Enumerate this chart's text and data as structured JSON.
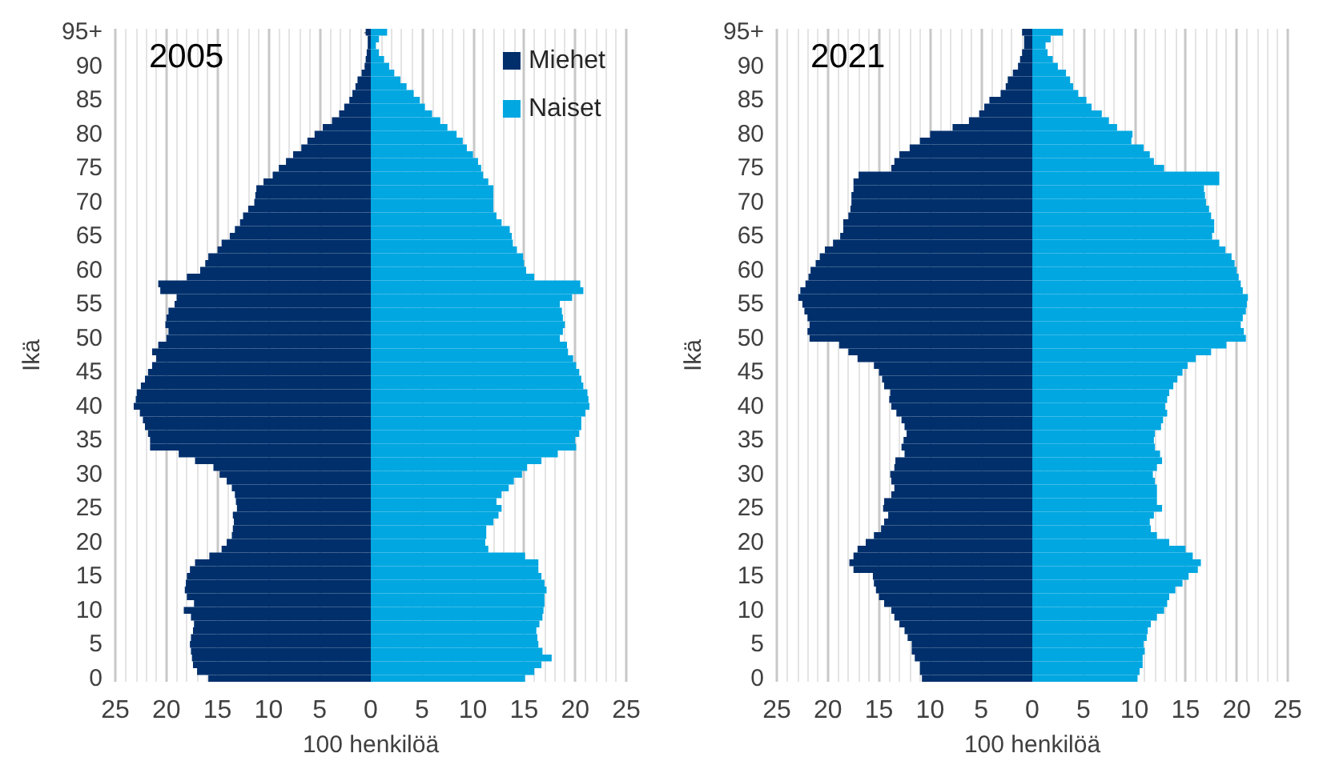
{
  "chart_data": [
    {
      "type": "bar",
      "orientation": "horizontal",
      "stacked": true,
      "title": "2005",
      "xlabel": "100 henkilöä",
      "ylabel": "Ikä",
      "legend": "top right",
      "grid": "x",
      "categories": [
        "95+",
        null,
        null,
        null,
        null,
        "90",
        null,
        null,
        null,
        null,
        "85",
        null,
        null,
        null,
        null,
        "80",
        null,
        null,
        null,
        null,
        "75",
        null,
        null,
        null,
        null,
        "70",
        null,
        null,
        null,
        null,
        "65",
        null,
        null,
        null,
        null,
        "60",
        null,
        null,
        null,
        null,
        "55",
        null,
        null,
        null,
        null,
        "50",
        null,
        null,
        null,
        null,
        "45",
        null,
        null,
        null,
        null,
        "40",
        null,
        null,
        null,
        null,
        "35",
        null,
        null,
        null,
        null,
        "30",
        null,
        null,
        null,
        null,
        "25",
        null,
        null,
        null,
        null,
        "20",
        null,
        null,
        null,
        null,
        "15",
        null,
        null,
        null,
        null,
        "10",
        null,
        null,
        null,
        null,
        "5",
        null,
        null,
        null,
        null,
        "0"
      ],
      "xlim": [
        -25,
        25
      ],
      "xticks": [
        {
          "value": -25,
          "label": "25"
        },
        {
          "value": -20,
          "label": "20"
        },
        {
          "value": -15,
          "label": "15"
        },
        {
          "value": -10,
          "label": "10"
        },
        {
          "value": -5,
          "label": "5"
        },
        0,
        5,
        10,
        15,
        20,
        25
      ],
      "series": [
        {
          "name": "Miehet",
          "color": "#002f6c",
          "values": [
            -0.5,
            -0.3,
            -0.3,
            -0.4,
            -0.5,
            -0.6,
            -0.9,
            -1.3,
            -1.5,
            -1.8,
            -2.1,
            -2.6,
            -3.1,
            -3.8,
            -4.7,
            -5.5,
            -6.2,
            -6.8,
            -7.6,
            -8.3,
            -9.0,
            -9.6,
            -10.5,
            -11.2,
            -11.3,
            -11.4,
            -12.0,
            -12.5,
            -12.8,
            -13.3,
            -13.8,
            -14.6,
            -15.0,
            -15.9,
            -16.2,
            -16.7,
            -18.0,
            -20.8,
            -20.6,
            -19.0,
            -19.2,
            -19.8,
            -20.0,
            -20.1,
            -19.8,
            -20.0,
            -20.8,
            -21.4,
            -21.0,
            -21.4,
            -21.8,
            -22.1,
            -22.5,
            -22.9,
            -23.0,
            -23.2,
            -22.6,
            -22.3,
            -22.1,
            -21.8,
            -21.6,
            -21.6,
            -18.8,
            -17.2,
            -15.4,
            -14.8,
            -14.1,
            -13.6,
            -13.3,
            -13.2,
            -13.1,
            -13.5,
            -13.4,
            -13.5,
            -13.6,
            -14.1,
            -14.6,
            -15.8,
            -17.2,
            -17.7,
            -18.0,
            -18.1,
            -18.2,
            -18.0,
            -17.3,
            -18.3,
            -17.6,
            -17.3,
            -17.4,
            -17.6,
            -17.7,
            -17.6,
            -17.5,
            -17.4,
            -17.0,
            -15.9
          ]
        },
        {
          "name": "Naiset",
          "color": "#00a7e1",
          "values": [
            1.6,
            0.8,
            0.5,
            0.8,
            1.3,
            1.8,
            2.3,
            2.9,
            3.5,
            4.2,
            4.8,
            5.3,
            6.0,
            6.8,
            7.5,
            8.4,
            9.0,
            9.4,
            10.0,
            10.5,
            10.8,
            11.0,
            11.5,
            12.0,
            12.0,
            12.0,
            12.0,
            12.3,
            12.8,
            13.6,
            13.8,
            13.9,
            14.3,
            14.9,
            15.0,
            15.2,
            16.0,
            20.5,
            20.8,
            19.7,
            18.5,
            18.7,
            18.8,
            19.0,
            18.8,
            18.5,
            19.2,
            19.3,
            19.8,
            20.1,
            20.4,
            20.6,
            20.8,
            21.2,
            21.3,
            21.4,
            21.0,
            20.6,
            20.6,
            20.4,
            20.0,
            20.1,
            18.3,
            16.7,
            15.3,
            14.8,
            14.0,
            13.5,
            12.8,
            12.3,
            12.8,
            12.5,
            12.0,
            11.3,
            11.3,
            11.2,
            11.5,
            15.1,
            16.4,
            16.4,
            16.7,
            17.0,
            17.2,
            17.0,
            17.0,
            16.9,
            16.8,
            16.5,
            16.2,
            16.3,
            16.4,
            16.8,
            17.7,
            16.7,
            16.0,
            15.1
          ]
        }
      ]
    },
    {
      "type": "bar",
      "orientation": "horizontal",
      "stacked": true,
      "title": "2021",
      "xlabel": "100 henkilöä",
      "ylabel": "Ikä",
      "grid": "x",
      "categories": [
        "95+",
        null,
        null,
        null,
        null,
        "90",
        null,
        null,
        null,
        null,
        "85",
        null,
        null,
        null,
        null,
        "80",
        null,
        null,
        null,
        null,
        "75",
        null,
        null,
        null,
        null,
        "70",
        null,
        null,
        null,
        null,
        "65",
        null,
        null,
        null,
        null,
        "60",
        null,
        null,
        null,
        null,
        "55",
        null,
        null,
        null,
        null,
        "50",
        null,
        null,
        null,
        null,
        "45",
        null,
        null,
        null,
        null,
        "40",
        null,
        null,
        null,
        null,
        "35",
        null,
        null,
        null,
        null,
        "30",
        null,
        null,
        null,
        null,
        "25",
        null,
        null,
        null,
        null,
        "20",
        null,
        null,
        null,
        null,
        "15",
        null,
        null,
        null,
        null,
        "10",
        null,
        null,
        null,
        null,
        "5",
        null,
        null,
        null,
        null,
        "0"
      ],
      "xlim": [
        -25,
        25
      ],
      "xticks": [
        {
          "value": -25,
          "label": "25"
        },
        {
          "value": -20,
          "label": "20"
        },
        {
          "value": -15,
          "label": "15"
        },
        {
          "value": -10,
          "label": "10"
        },
        {
          "value": -5,
          "label": "5"
        },
        0,
        5,
        10,
        15,
        20,
        25
      ],
      "series": [
        {
          "color": "#002f6c",
          "values": [
            -1.0,
            -0.8,
            -0.8,
            -1.0,
            -1.2,
            -1.4,
            -1.9,
            -2.4,
            -2.6,
            -3.1,
            -4.2,
            -4.7,
            -5.2,
            -6.2,
            -7.8,
            -10.0,
            -11.0,
            -12.0,
            -13.0,
            -13.5,
            -13.8,
            -17.0,
            -17.5,
            -17.5,
            -17.7,
            -17.7,
            -17.8,
            -18.0,
            -18.5,
            -18.5,
            -18.8,
            -19.5,
            -20.3,
            -20.8,
            -21.2,
            -21.7,
            -21.9,
            -22.2,
            -22.7,
            -22.9,
            -22.5,
            -22.3,
            -22.0,
            -21.8,
            -22.0,
            -21.8,
            -18.9,
            -18.0,
            -17.1,
            -15.5,
            -15.0,
            -14.7,
            -14.5,
            -13.9,
            -14.0,
            -13.8,
            -13.3,
            -12.8,
            -12.5,
            -12.3,
            -12.6,
            -12.8,
            -12.5,
            -13.4,
            -13.5,
            -13.9,
            -13.8,
            -13.5,
            -13.8,
            -14.5,
            -14.6,
            -14.1,
            -14.5,
            -14.8,
            -15.5,
            -16.3,
            -17.1,
            -17.5,
            -17.9,
            -17.5,
            -15.6,
            -15.5,
            -15.3,
            -15.0,
            -14.5,
            -13.8,
            -13.5,
            -13.0,
            -12.5,
            -12.2,
            -11.8,
            -11.8,
            -11.5,
            -11.0,
            -11.0,
            -10.8
          ]
        },
        {
          "color": "#00a7e1",
          "values": [
            3.0,
            1.8,
            1.3,
            1.5,
            2.0,
            2.5,
            3.3,
            3.7,
            4.0,
            4.5,
            5.3,
            5.8,
            6.8,
            7.5,
            8.3,
            9.8,
            9.7,
            10.9,
            11.5,
            11.9,
            12.9,
            18.3,
            18.3,
            16.8,
            16.9,
            17.0,
            17.3,
            17.5,
            17.8,
            17.8,
            17.6,
            18.3,
            18.9,
            19.5,
            19.8,
            20.0,
            20.2,
            20.4,
            20.6,
            21.1,
            21.0,
            20.9,
            20.6,
            20.4,
            20.7,
            20.9,
            19.0,
            17.5,
            16.0,
            15.2,
            14.7,
            14.2,
            13.8,
            13.4,
            13.2,
            13.0,
            13.2,
            12.8,
            12.6,
            12.0,
            11.9,
            12.0,
            12.5,
            12.7,
            12.2,
            11.8,
            12.0,
            12.2,
            12.2,
            12.2,
            12.7,
            11.9,
            11.5,
            11.6,
            12.2,
            13.4,
            15.0,
            15.7,
            16.5,
            16.2,
            15.3,
            14.7,
            14.0,
            13.4,
            13.2,
            12.9,
            12.2,
            11.6,
            11.3,
            11.2,
            10.9,
            11.0,
            10.8,
            10.8,
            10.5,
            10.3
          ]
        }
      ]
    }
  ]
}
